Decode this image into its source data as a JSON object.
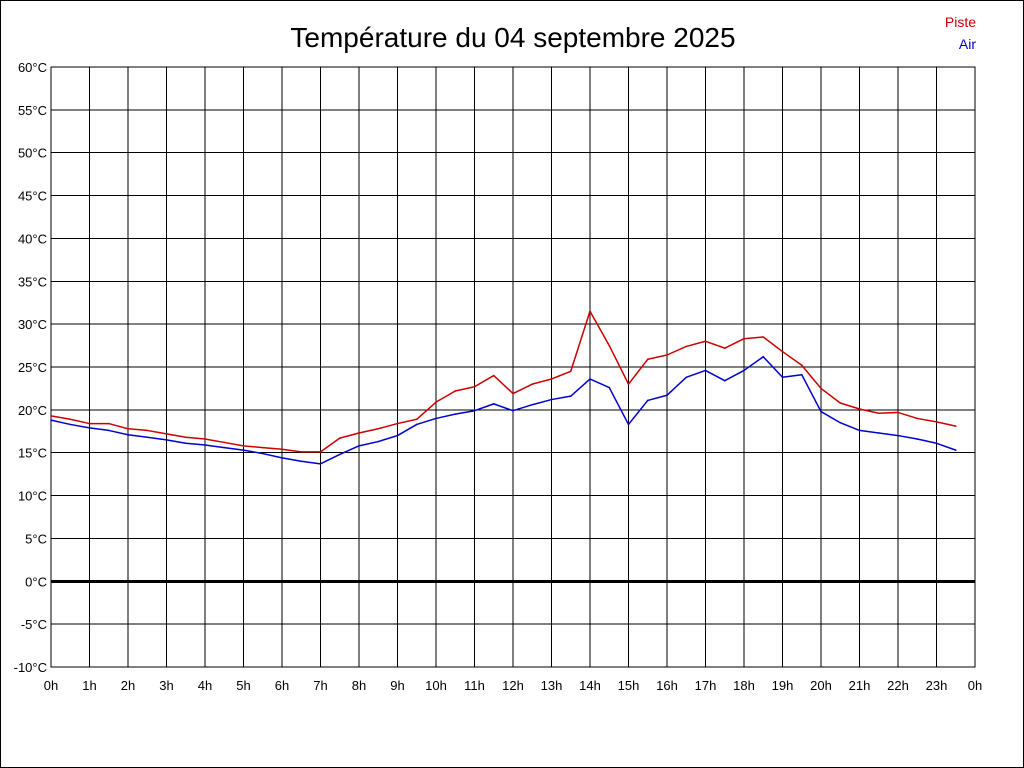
{
  "chart_data": {
    "type": "line",
    "title": "Température du 04 septembre 2025",
    "xlabel": "",
    "ylabel": "",
    "x_tick_labels": [
      "0h",
      "1h",
      "2h",
      "3h",
      "4h",
      "5h",
      "6h",
      "7h",
      "8h",
      "9h",
      "10h",
      "11h",
      "12h",
      "13h",
      "14h",
      "15h",
      "16h",
      "17h",
      "18h",
      "19h",
      "20h",
      "21h",
      "22h",
      "23h",
      "0h"
    ],
    "y_tick_labels": [
      "60°C",
      "55°C",
      "50°C",
      "45°C",
      "40°C",
      "35°C",
      "30°C",
      "25°C",
      "20°C",
      "15°C",
      "10°C",
      "5°C",
      "0°C",
      "-5°C",
      "-10°C"
    ],
    "y_ticks": [
      60,
      55,
      50,
      45,
      40,
      35,
      30,
      25,
      20,
      15,
      10,
      5,
      0,
      -5,
      -10
    ],
    "xlim": [
      0,
      24
    ],
    "ylim": [
      -10,
      60
    ],
    "grid": true,
    "legend_position": "top-right",
    "zero_line": true,
    "x": [
      0,
      0.5,
      1,
      1.5,
      2,
      2.5,
      3,
      3.5,
      4,
      4.5,
      5,
      5.5,
      6,
      6.5,
      7,
      7.5,
      8,
      8.5,
      9,
      9.5,
      10,
      10.5,
      11,
      11.5,
      12,
      12.5,
      13,
      13.5,
      14,
      14.5,
      15,
      15.5,
      16,
      16.5,
      17,
      17.5,
      18,
      18.5,
      19,
      19.5,
      20,
      20.5,
      21,
      21.5,
      22,
      22.5,
      23,
      23.5
    ],
    "series": [
      {
        "name": "Piste",
        "color": "#cc0000",
        "values": [
          19.3,
          18.9,
          18.4,
          18.4,
          17.8,
          17.6,
          17.2,
          16.8,
          16.6,
          16.2,
          15.8,
          15.6,
          15.4,
          15.1,
          15.1,
          16.7,
          17.3,
          17.8,
          18.4,
          18.9,
          20.9,
          22.2,
          22.7,
          24.0,
          21.9,
          23.0,
          23.6,
          24.5,
          31.5,
          27.5,
          23.0,
          25.9,
          26.4,
          27.4,
          28.0,
          27.2,
          28.3,
          28.5,
          26.8,
          25.2,
          22.5,
          20.8,
          20.1,
          19.6,
          19.7,
          19.0,
          18.6,
          18.1
        ]
      },
      {
        "name": "Air",
        "color": "#0000cc",
        "values": [
          18.8,
          18.3,
          17.9,
          17.6,
          17.1,
          16.8,
          16.5,
          16.1,
          15.9,
          15.6,
          15.3,
          14.9,
          14.4,
          14.0,
          13.7,
          14.8,
          15.8,
          16.3,
          17.0,
          18.3,
          19.0,
          19.5,
          19.9,
          20.7,
          19.9,
          20.6,
          21.2,
          21.6,
          23.6,
          22.6,
          18.3,
          21.1,
          21.7,
          23.8,
          24.6,
          23.4,
          24.6,
          26.2,
          23.8,
          24.1,
          19.8,
          18.5,
          17.6,
          17.3,
          17.0,
          16.6,
          16.1,
          15.3
        ]
      }
    ]
  }
}
